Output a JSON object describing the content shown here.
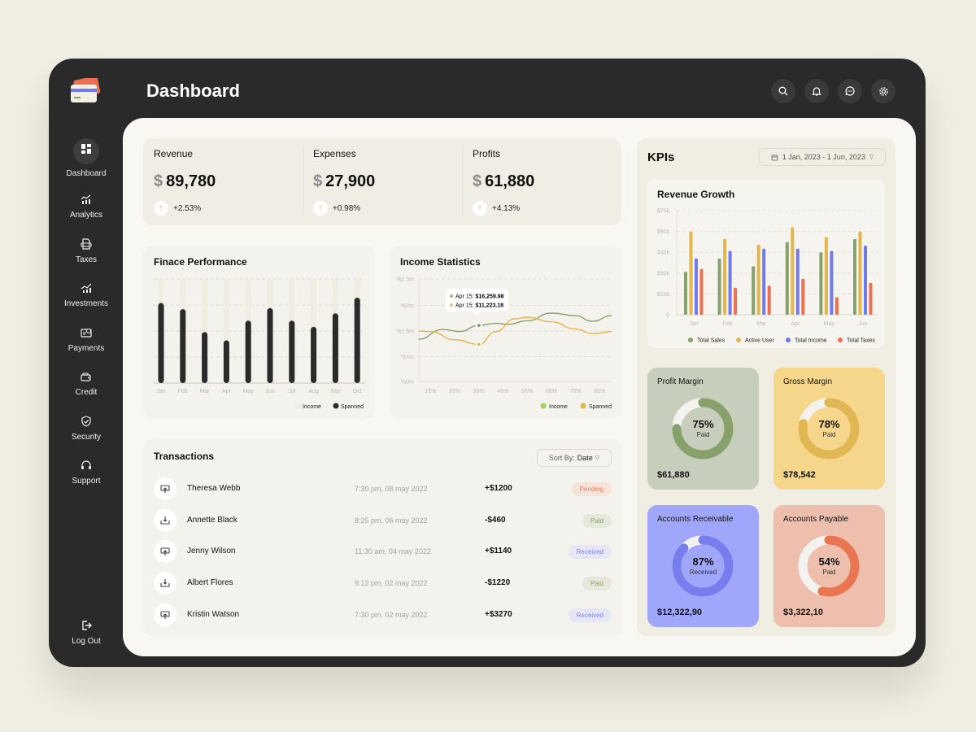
{
  "app": {
    "title": "Dashboard"
  },
  "sidebar": {
    "items": [
      {
        "label": "Dashboard",
        "icon": "dashboard-icon",
        "active": true
      },
      {
        "label": "Analytics",
        "icon": "analytics-icon"
      },
      {
        "label": "Taxes",
        "icon": "taxes-icon"
      },
      {
        "label": "Investments",
        "icon": "investments-icon"
      },
      {
        "label": "Payments",
        "icon": "payments-icon"
      },
      {
        "label": "Credit",
        "icon": "credit-icon"
      },
      {
        "label": "Security",
        "icon": "shield-icon"
      },
      {
        "label": "Support",
        "icon": "headset-icon"
      }
    ],
    "logout": "Log Out"
  },
  "header": {
    "icons": [
      "search-icon",
      "bell-icon",
      "chat-icon",
      "gear-icon"
    ]
  },
  "stats": [
    {
      "label": "Revenue",
      "currency": "$",
      "value": "89,780",
      "change": "+2.53%"
    },
    {
      "label": "Expenses",
      "currency": "$",
      "value": "27,900",
      "change": "+0.98%"
    },
    {
      "label": "Profits",
      "currency": "$",
      "value": "61,880",
      "change": "+4.13%"
    }
  ],
  "colors": {
    "dark": "#2a2a2a",
    "green": "#87a06c",
    "yellow": "#e3b64c",
    "blue": "#7179ee",
    "red": "#ec6f4f",
    "track": "#efede2"
  },
  "chart_data": [
    {
      "type": "bar",
      "title": "Finace Performance",
      "categories": [
        "Jan",
        "Feb",
        "Mar",
        "Apr",
        "May",
        "Jun",
        "Jul",
        "Aug",
        "Sep",
        "Oct"
      ],
      "series": [
        {
          "name": "Income",
          "values": [
            100,
            100,
            100,
            100,
            100,
            100,
            100,
            100,
            100,
            100
          ]
        },
        {
          "name": "Spanned",
          "values": [
            77,
            71,
            49,
            41,
            60,
            72,
            60,
            54,
            67,
            82
          ]
        }
      ],
      "ylim": [
        0,
        100
      ],
      "grid": true,
      "legend": "bottom-right"
    },
    {
      "type": "line",
      "title": "Income Statistics",
      "x_ticks": [
        "15%",
        "25%",
        "35%",
        "45%",
        "55%",
        "65%",
        "75%",
        "85%"
      ],
      "y_ticks": [
        "%0m",
        "%1m",
        "%1.5m",
        "%2m",
        "%2.5m"
      ],
      "series": [
        {
          "name": "Income",
          "x": [
            10,
            20,
            27,
            35,
            42,
            47,
            55,
            65,
            75,
            82,
            90
          ],
          "values": [
            1.34,
            1.53,
            1.49,
            1.61,
            1.65,
            1.63,
            1.7,
            1.85,
            1.8,
            1.69,
            1.8
          ]
        },
        {
          "name": "Spanned",
          "x": [
            10,
            15,
            25,
            35,
            42,
            50,
            55,
            65,
            75,
            82,
            90
          ],
          "values": [
            1.5,
            1.49,
            1.33,
            1.24,
            1.49,
            1.74,
            1.77,
            1.68,
            1.54,
            1.45,
            1.49
          ]
        }
      ],
      "tooltip": [
        {
          "label": "Apr 15: ",
          "value": "$16,259.98"
        },
        {
          "label": "Apr 15: ",
          "value": "$11,223.18"
        }
      ],
      "legend": [
        {
          "name": "Income",
          "color": "#9fd65a"
        },
        {
          "name": "Spanned",
          "color": "#e3b64c"
        }
      ],
      "grid": true,
      "legend_position": "bottom-right"
    },
    {
      "type": "bar",
      "title": "Revenue Growth",
      "categories": [
        "Jan",
        "Feb",
        "Mar",
        "Apr",
        "May",
        "Jun"
      ],
      "y_ticks": [
        "0",
        "$15k",
        "$30k",
        "$45k",
        "$60k",
        "$75k"
      ],
      "ylim": [
        0,
        75000
      ],
      "series": [
        {
          "name": "Total Sales",
          "values": [
            31000,
            40600,
            35000,
            52500,
            45000,
            54600
          ]
        },
        {
          "name": "Active User",
          "values": [
            60000,
            54600,
            50500,
            63000,
            56000,
            60000
          ]
        },
        {
          "name": "Total Income",
          "values": [
            40600,
            46000,
            47600,
            47600,
            46000,
            49700
          ]
        },
        {
          "name": "Total Taxes",
          "values": [
            33000,
            19500,
            21000,
            26000,
            12700,
            23000
          ]
        }
      ],
      "grid": true,
      "legend": "bottom"
    }
  ],
  "transactions": {
    "title": "Transactions",
    "sort_label": "Sort By:",
    "sort_value": "Date",
    "rows": [
      {
        "name": "Theresa Webb",
        "date": "7:30 pm, 08 may 2022",
        "amount": "+$1200",
        "status": "Pending",
        "icon": "send-icon"
      },
      {
        "name": "Annette Black",
        "date": "8:25 pm, 06 may 2022",
        "amount": "-$460",
        "status": "Paid",
        "icon": "receive-icon"
      },
      {
        "name": "Jenny Wilson",
        "date": "11:30 am, 04 may 2022",
        "amount": "+$1140",
        "status": "Received",
        "icon": "send-icon"
      },
      {
        "name": "Albert Flores",
        "date": "9:12 pm, 02 may 2022",
        "amount": "-$1220",
        "status": "Paid",
        "icon": "receive-icon"
      },
      {
        "name": "Kristin Watson",
        "date": "7:30 pm, 02 may 2022",
        "amount": "+$3270",
        "status": "Received",
        "icon": "send-icon"
      }
    ]
  },
  "kpis": {
    "title": "KPIs",
    "date_range": "1 Jan, 2023 - 1 Jun, 2023",
    "cards": [
      {
        "title": "Profit Margin",
        "percent": 75,
        "pct_label": "75%",
        "sub": "Paid",
        "value": "$61,880",
        "bg": "#c7cfbc",
        "color": "#87a06c"
      },
      {
        "title": "Gross Margin",
        "percent": 78,
        "pct_label": "78%",
        "sub": "Paid",
        "value": "$78,542",
        "bg": "#f6d68a",
        "color": "#e0b753"
      },
      {
        "title": "Accounts Receivable",
        "percent": 87,
        "pct_label": "87%",
        "sub": "Received",
        "value": "$12,322,90",
        "bg": "#a0a7fb",
        "color": "#777ded"
      },
      {
        "title": "Accounts Payable",
        "percent": 54,
        "pct_label": "54%",
        "sub": "Paid",
        "value": "$3,322,10",
        "bg": "#eebfac",
        "color": "#ea7553"
      }
    ]
  }
}
